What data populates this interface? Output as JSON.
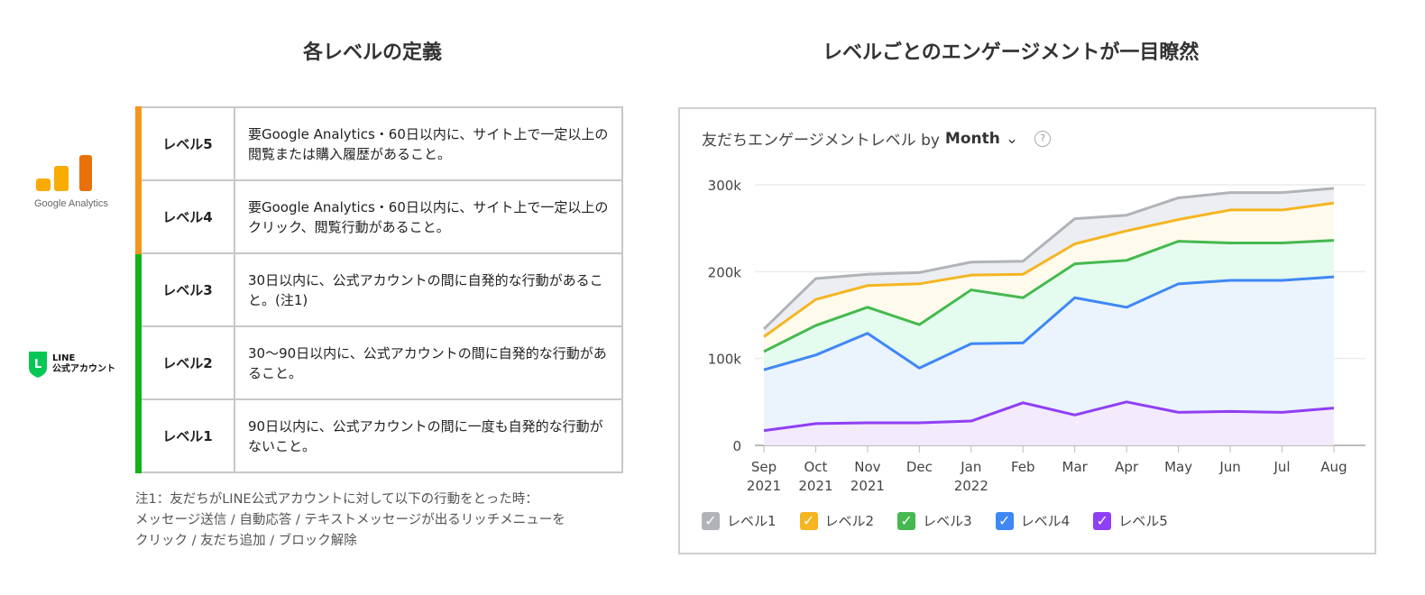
{
  "left": {
    "heading": "各レベルの定義",
    "logos": {
      "ga": "Google Analytics",
      "line_top": "LINE",
      "line_bottom": "公式アカウント"
    },
    "rows": [
      {
        "level": "レベル5",
        "desc": "要Google Analytics・60日以内に、サイト上で一定以上の閲覧または購入履歴があること。",
        "color": "#f7941d"
      },
      {
        "level": "レベル4",
        "desc": "要Google Analytics・60日以内に、サイト上で一定以上のクリック、閲覧行動があること。",
        "color": "#f7941d"
      },
      {
        "level": "レベル3",
        "desc": "30日以内に、公式アカウントの間に自発的な行動があること。(注1)",
        "color": "#10b418"
      },
      {
        "level": "レベル2",
        "desc": "30～90日以内に、公式アカウントの間に自発的な行動があること。",
        "color": "#10b418"
      },
      {
        "level": "レベル1",
        "desc": "90日以内に、公式アカウントの間に一度も自発的な行動がないこと。",
        "color": "#10b418"
      }
    ],
    "note": [
      "注1：友だちがLINE公式アカウントに対して以下の行動をとった時：",
      "メッセージ送信 / 自動応答 / テキストメッセージが出るリッチメニューを",
      "クリック / 友だち追加 / ブロック解除"
    ]
  },
  "right": {
    "heading": "レベルごとのエンゲージメントが一目瞭然",
    "card_title": "友だちエンゲージメントレベル by",
    "period": "Month",
    "help_icon": "question-icon",
    "dropdown_icon": "chevron-down-icon"
  },
  "chart_data": {
    "type": "area",
    "stacked_display": true,
    "grid": true,
    "legend": "bottom",
    "x": [
      "Sep 2021",
      "Oct 2021",
      "Nov 2021",
      "Dec",
      "Jan 2022",
      "Feb",
      "Mar",
      "Apr",
      "May",
      "Jun",
      "Jul",
      "Aug"
    ],
    "yticks": [
      "0",
      "100k",
      "200k",
      "300k"
    ],
    "ylim": [
      0,
      300000
    ],
    "series": [
      {
        "name": "レベル1",
        "color": "#b0b3b8",
        "fill": "#eceef1",
        "values": [
          134000,
          192000,
          197000,
          199000,
          211000,
          212000,
          261000,
          265000,
          285000,
          291000,
          291000,
          296000
        ]
      },
      {
        "name": "レベル2",
        "color": "#f5b521",
        "fill": "#fefbec",
        "values": [
          125000,
          168000,
          184000,
          186000,
          196000,
          197000,
          232000,
          247000,
          260000,
          271000,
          271000,
          279000
        ]
      },
      {
        "name": "レベル3",
        "color": "#45b94f",
        "fill": "#e4fbef",
        "values": [
          108000,
          138000,
          159000,
          139000,
          179000,
          170000,
          209000,
          213000,
          235000,
          233000,
          233000,
          236000
        ]
      },
      {
        "name": "レベル4",
        "color": "#3f87f5",
        "fill": "#ebf3fd",
        "values": [
          87000,
          104000,
          129000,
          89000,
          117000,
          118000,
          170000,
          159000,
          186000,
          190000,
          190000,
          194000
        ]
      },
      {
        "name": "レベル5",
        "color": "#8f3ff5",
        "fill": "#f3eafc",
        "values": [
          17000,
          25000,
          26000,
          26000,
          28000,
          49000,
          35000,
          50000,
          38000,
          39000,
          38000,
          43000
        ]
      }
    ]
  }
}
